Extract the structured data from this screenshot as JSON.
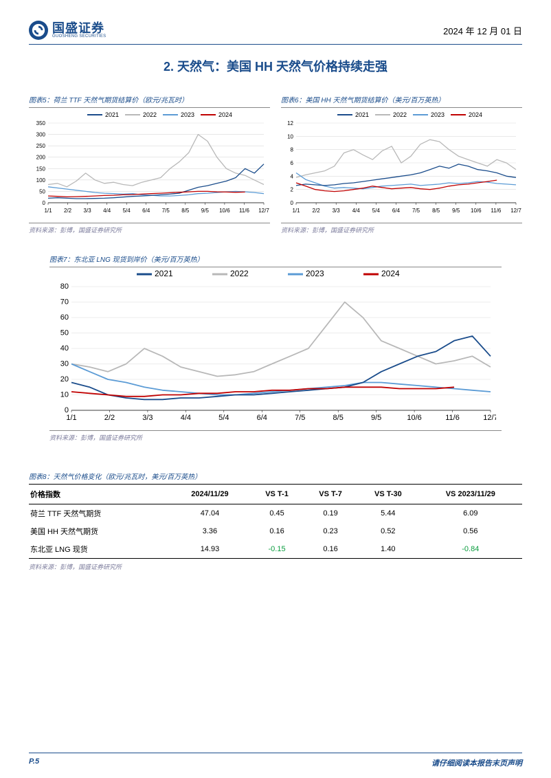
{
  "header": {
    "company_cn": "国盛证券",
    "company_en": "GUOSHENG SECURITIES",
    "date": "2024 年 12 月 01 日"
  },
  "section_title_prefix": "2. 天然气：美国 ",
  "section_title_hh": "HH",
  "section_title_suffix": " 天然气价格持续走强",
  "colors": {
    "brand": "#1a4c8b",
    "s2021": "#1a4c8b",
    "s2022": "#b8b8b8",
    "s2023": "#5b9bd5",
    "s2024": "#c00000",
    "grid": "#d9d9d9",
    "axis": "#7f7f7f",
    "neg": "#0a9c3e"
  },
  "legend_labels": [
    "2021",
    "2022",
    "2023",
    "2024"
  ],
  "x_ticks": [
    "1/1",
    "2/2",
    "3/3",
    "4/4",
    "5/4",
    "6/4",
    "7/5",
    "8/5",
    "9/5",
    "10/6",
    "11/6",
    "12/7"
  ],
  "chart5": {
    "title": "图表5：荷兰 TTF 天然气期货结算价（欧元/兆瓦时）",
    "source": "资料来源：彭博，国盛证券研究所",
    "ylim": [
      0,
      350
    ],
    "yticks": [
      0,
      50,
      100,
      150,
      200,
      250,
      300,
      350
    ],
    "series": {
      "2021": [
        20,
        22,
        20,
        18,
        18,
        19,
        20,
        22,
        25,
        28,
        30,
        32,
        35,
        38,
        42,
        55,
        68,
        75,
        85,
        95,
        110,
        150,
        130,
        170
      ],
      "2022": [
        80,
        85,
        70,
        95,
        130,
        100,
        85,
        90,
        80,
        75,
        90,
        100,
        110,
        150,
        180,
        220,
        300,
        270,
        200,
        150,
        130,
        120,
        100,
        80
      ],
      "2023": [
        70,
        65,
        60,
        55,
        50,
        45,
        42,
        40,
        38,
        40,
        35,
        33,
        30,
        30,
        32,
        35,
        40,
        42,
        45,
        48,
        50,
        48,
        45,
        40
      ],
      "2024": [
        30,
        28,
        26,
        27,
        28,
        30,
        32,
        33,
        35,
        36,
        38,
        40,
        42,
        44,
        46,
        48,
        50,
        50,
        48,
        47,
        46,
        47
      ]
    }
  },
  "chart6": {
    "title": "图表6：美国 HH 天然气期货结算价（美元/百万英热）",
    "source": "资料来源：彭博，国盛证券研究所",
    "ylim": [
      0,
      12
    ],
    "yticks": [
      0,
      2,
      4,
      6,
      8,
      10,
      12
    ],
    "series": {
      "2021": [
        2.6,
        2.8,
        2.7,
        2.6,
        2.7,
        2.9,
        3.0,
        3.2,
        3.4,
        3.6,
        3.8,
        4.0,
        4.2,
        4.5,
        5.0,
        5.5,
        5.2,
        5.8,
        5.5,
        5.0,
        4.8,
        4.5,
        4.0,
        3.8
      ],
      "2022": [
        3.8,
        4.2,
        4.5,
        4.8,
        5.5,
        7.5,
        8.0,
        7.2,
        6.5,
        7.8,
        8.5,
        6.0,
        7.0,
        8.8,
        9.5,
        9.2,
        8.0,
        7.0,
        6.5,
        6.0,
        5.5,
        6.5,
        6.0,
        5.0
      ],
      "2023": [
        4.5,
        3.5,
        3.0,
        2.5,
        2.2,
        2.3,
        2.2,
        2.1,
        2.3,
        2.5,
        2.6,
        2.7,
        2.8,
        2.6,
        2.7,
        2.8,
        3.0,
        2.9,
        3.0,
        3.2,
        3.1,
        2.9,
        2.8,
        2.7
      ],
      "2024": [
        3.0,
        2.5,
        2.0,
        1.8,
        1.7,
        1.8,
        2.0,
        2.2,
        2.5,
        2.3,
        2.1,
        2.2,
        2.3,
        2.1,
        2.0,
        2.2,
        2.5,
        2.7,
        2.8,
        3.0,
        3.2,
        3.4
      ]
    }
  },
  "chart7": {
    "title": "图表7：东北亚 LNG 现货到岸价（美元/百万英热）",
    "source": "资料来源：彭博，国盛证券研究所",
    "ylim": [
      0,
      80
    ],
    "yticks": [
      0,
      10,
      20,
      30,
      40,
      50,
      60,
      70,
      80
    ],
    "series": {
      "2021": [
        18,
        15,
        10,
        8,
        7,
        7,
        8,
        8,
        9,
        10,
        10,
        11,
        12,
        13,
        14,
        15,
        18,
        25,
        30,
        35,
        38,
        45,
        48,
        35
      ],
      "2022": [
        30,
        28,
        25,
        30,
        40,
        35,
        28,
        25,
        22,
        23,
        25,
        30,
        35,
        40,
        55,
        70,
        60,
        45,
        40,
        35,
        30,
        32,
        35,
        28
      ],
      "2023": [
        30,
        25,
        20,
        18,
        15,
        13,
        12,
        11,
        10,
        10,
        11,
        12,
        13,
        14,
        15,
        16,
        18,
        18,
        17,
        16,
        15,
        14,
        13,
        12
      ],
      "2024": [
        12,
        11,
        10,
        9,
        9,
        10,
        10,
        11,
        11,
        12,
        12,
        13,
        13,
        14,
        14,
        15,
        15,
        15,
        14,
        14,
        14,
        15
      ]
    }
  },
  "table": {
    "title": "图表8：天然气价格变化（欧元/兆瓦时，美元/百万英热）",
    "source": "资料来源：彭博，国盛证券研究所",
    "columns": [
      "价格指数",
      "2024/11/29",
      "VS T-1",
      "VS T-7",
      "VS T-30",
      "VS 2023/11/29"
    ],
    "rows": [
      {
        "cells": [
          "荷兰 TTF 天然气期货",
          "47.04",
          "0.45",
          "0.19",
          "5.44",
          "6.09"
        ],
        "neg": [
          false,
          false,
          false,
          false,
          false,
          false
        ]
      },
      {
        "cells": [
          "美国 HH 天然气期货",
          "3.36",
          "0.16",
          "0.23",
          "0.52",
          "0.56"
        ],
        "neg": [
          false,
          false,
          false,
          false,
          false,
          false
        ]
      },
      {
        "cells": [
          "东北亚 LNG 现货",
          "14.93",
          "-0.15",
          "0.16",
          "1.40",
          "-0.84"
        ],
        "neg": [
          false,
          false,
          true,
          false,
          false,
          true
        ]
      }
    ]
  },
  "footer": {
    "page": "P.5",
    "disclaimer": "请仔细阅读本报告末页声明"
  }
}
